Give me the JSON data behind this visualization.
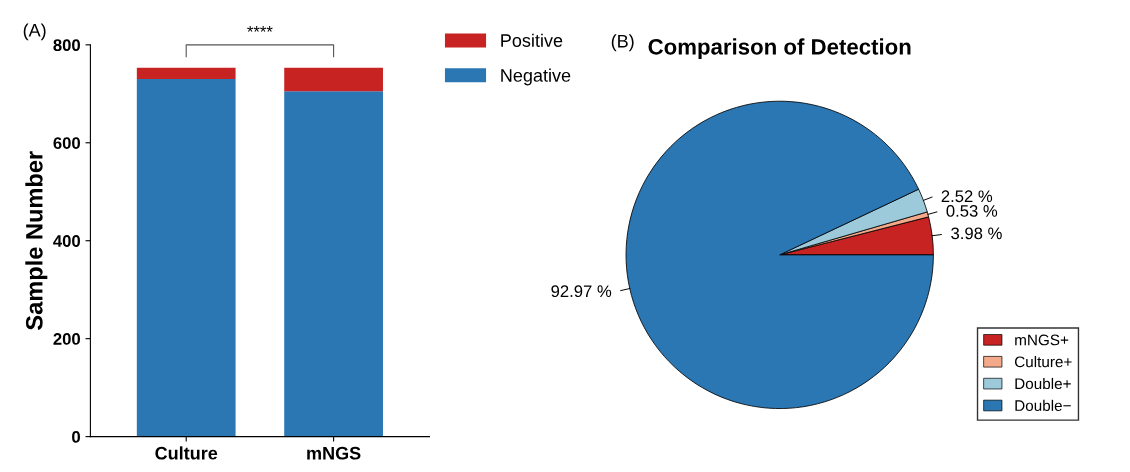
{
  "chart_data": [
    {
      "type": "bar",
      "title": "(A)",
      "ylabel": "Sample Number",
      "categories": [
        "Culture",
        "mNGS"
      ],
      "stacked": true,
      "series": [
        {
          "name": "Negative",
          "color": "#2a77b4",
          "values": [
            730,
            705
          ]
        },
        {
          "name": "Positive",
          "color": "#c82323",
          "values": [
            23,
            48
          ]
        }
      ],
      "ylim": [
        0,
        800
      ],
      "yticks": [
        0,
        200,
        400,
        600,
        800
      ],
      "grid": false,
      "legend": "top right",
      "annotations": [
        "****"
      ]
    },
    {
      "type": "pie",
      "title": "Comparison of Detection",
      "categories": [
        "mNGS+",
        "Culture+",
        "Double+",
        "Double−"
      ],
      "values": [
        3.98,
        0.53,
        2.52,
        92.97
      ],
      "colors": [
        "#c82323",
        "#f4aa8a",
        "#9ccadb",
        "#2a77b4"
      ],
      "value_labels": [
        "3.98 %",
        "0.53 %",
        "2.52 %",
        "92.97 %"
      ],
      "legend": "bottom right",
      "annotations": [
        "(B)"
      ]
    }
  ]
}
